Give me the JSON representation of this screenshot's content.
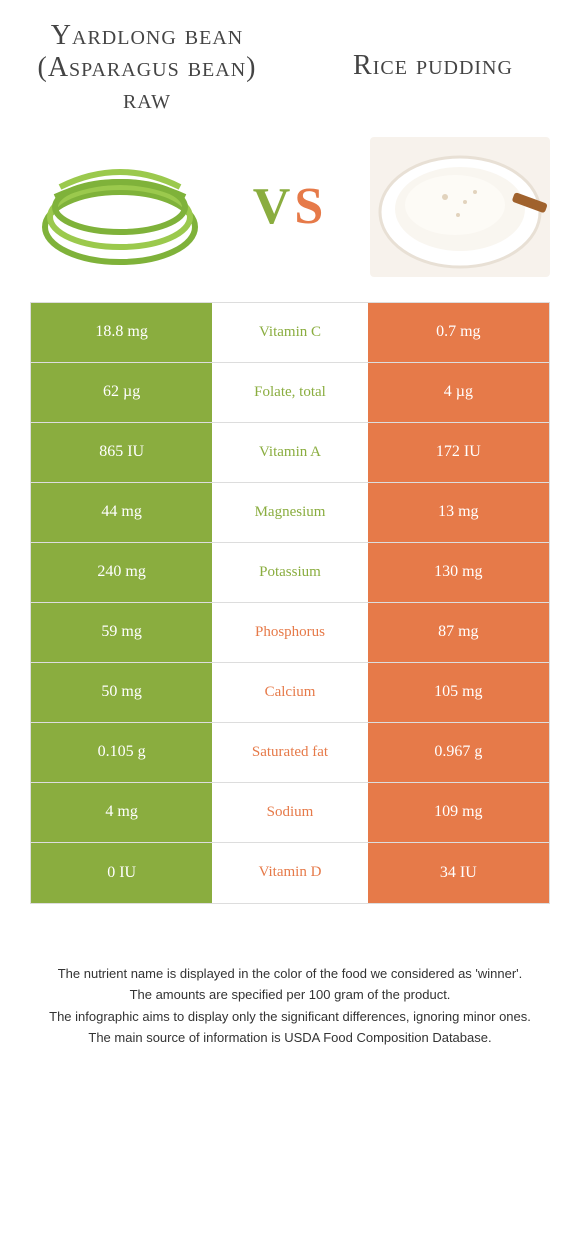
{
  "colors": {
    "left": "#8aad3f",
    "right": "#e67a49",
    "border": "#dddddd",
    "text": "#333333",
    "white": "#ffffff"
  },
  "titles": {
    "left": "Yardlong bean (Asparagus bean) raw",
    "right": "Rice pudding"
  },
  "vs": {
    "v": "V",
    "s": "S"
  },
  "images": {
    "left_alt": "yardlong beans",
    "right_alt": "rice pudding"
  },
  "nutrients": [
    {
      "name": "Vitamin C",
      "left": "18.8 mg",
      "right": "0.7 mg",
      "winner": "left"
    },
    {
      "name": "Folate, total",
      "left": "62 µg",
      "right": "4 µg",
      "winner": "left"
    },
    {
      "name": "Vitamin A",
      "left": "865 IU",
      "right": "172 IU",
      "winner": "left"
    },
    {
      "name": "Magnesium",
      "left": "44 mg",
      "right": "13 mg",
      "winner": "left"
    },
    {
      "name": "Potassium",
      "left": "240 mg",
      "right": "130 mg",
      "winner": "left"
    },
    {
      "name": "Phosphorus",
      "left": "59 mg",
      "right": "87 mg",
      "winner": "right"
    },
    {
      "name": "Calcium",
      "left": "50 mg",
      "right": "105 mg",
      "winner": "right"
    },
    {
      "name": "Saturated fat",
      "left": "0.105 g",
      "right": "0.967 g",
      "winner": "right"
    },
    {
      "name": "Sodium",
      "left": "4 mg",
      "right": "109 mg",
      "winner": "right"
    },
    {
      "name": "Vitamin D",
      "left": "0 IU",
      "right": "34 IU",
      "winner": "right"
    }
  ],
  "footer": {
    "line1": "The nutrient name is displayed in the color of the food we considered as 'winner'.",
    "line2": "The amounts are specified per 100 gram of the product.",
    "line3": "The infographic aims to display only the significant differences, ignoring minor ones.",
    "line4": "The main source of information is USDA Food Composition Database."
  }
}
